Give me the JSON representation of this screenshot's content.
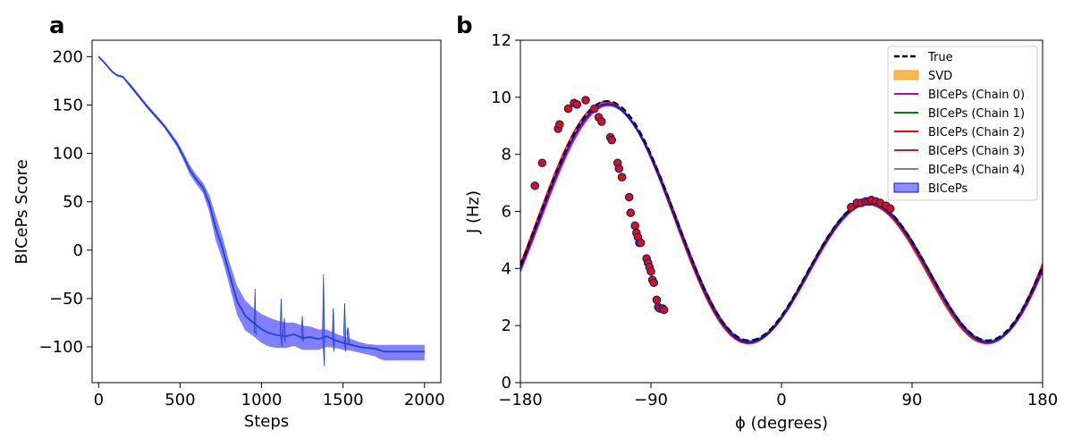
{
  "chart_data": [
    {
      "panel": "a",
      "type": "area",
      "xlabel": "Steps",
      "ylabel": "BICePs Score",
      "xlim": [
        -40,
        2100
      ],
      "ylim": [
        -137,
        217
      ],
      "xticks": [
        0,
        500,
        1000,
        1500,
        2000
      ],
      "yticks": [
        200,
        150,
        100,
        50,
        0,
        -50,
        -100
      ],
      "ytick_labels": [
        "200",
        "150",
        "100",
        "50",
        "0",
        "−50",
        "−100"
      ],
      "color": "#1f3fdc",
      "fill_color": "#6b6bff",
      "mean": {
        "x": [
          0,
          40,
          80,
          110,
          150,
          200,
          300,
          400,
          480,
          520,
          560,
          600,
          640,
          680,
          720,
          760,
          800,
          850,
          900,
          950,
          1000,
          1050,
          1100,
          1150,
          1200,
          1250,
          1300,
          1350,
          1400,
          1450,
          1500,
          1550,
          1600,
          1650,
          1700,
          1720,
          1750,
          2000
        ],
        "y": [
          200,
          193,
          185,
          181,
          179,
          169,
          148,
          129,
          110,
          97,
          83,
          73,
          65,
          48,
          22,
          2,
          -23,
          -53,
          -68,
          -75,
          -82,
          -86,
          -88,
          -89,
          -87,
          -91,
          -90,
          -92,
          -89,
          -93,
          -96,
          -98,
          -100,
          -101,
          -102,
          -103,
          -105,
          -105
        ]
      },
      "band_upper": [
        201,
        194,
        186,
        182,
        180,
        171,
        150,
        131,
        113,
        101,
        88,
        78,
        70,
        57,
        35,
        14,
        -11,
        -37,
        -52,
        -60,
        -66,
        -70,
        -73,
        -75,
        -75,
        -78,
        -79,
        -82,
        -82,
        -86,
        -89,
        -92,
        -95,
        -97,
        -98,
        -98,
        -98,
        -98
      ],
      "band_lower": [
        199,
        192,
        184,
        180,
        178,
        167,
        146,
        127,
        107,
        93,
        78,
        68,
        59,
        39,
        9,
        -10,
        -35,
        -67,
        -83,
        -89,
        -96,
        -100,
        -101,
        -101,
        -99,
        -103,
        -103,
        -103,
        -100,
        -101,
        -103,
        -104,
        -106,
        -108,
        -110,
        -112,
        -114,
        -114
      ],
      "spikes": [
        {
          "x": 960,
          "peak": -40,
          "low": -85
        },
        {
          "x": 1120,
          "peak": -50,
          "low": -100
        },
        {
          "x": 1140,
          "peak": -70,
          "low": -95
        },
        {
          "x": 1250,
          "peak": -68,
          "low": -95
        },
        {
          "x": 1380,
          "peak": -25,
          "low": -120
        },
        {
          "x": 1440,
          "peak": -60,
          "low": -105
        },
        {
          "x": 1510,
          "peak": -55,
          "low": -105
        },
        {
          "x": 1530,
          "peak": -80,
          "low": -98
        }
      ]
    },
    {
      "panel": "b",
      "type": "line",
      "xlabel": "ϕ (degrees)",
      "ylabel": "J (Hz)",
      "xlim": [
        -180,
        180
      ],
      "ylim": [
        0,
        12
      ],
      "xticks": [
        -180,
        -90,
        0,
        90,
        180
      ],
      "xtick_labels": [
        "−180",
        "−90",
        "0",
        "90",
        "180"
      ],
      "yticks": [
        0,
        2,
        4,
        6,
        8,
        10,
        12
      ],
      "karplus": {
        "A": 6.51,
        "B": -1.76,
        "C": 1.6,
        "offset_deg": -60
      },
      "legend_position": "top-right",
      "series": [
        {
          "name": "True",
          "color": "#000000",
          "style": "dashed",
          "A": 6.51,
          "B": -1.76,
          "C": 1.6,
          "offset_deg": -60
        },
        {
          "name": "SVD",
          "color": "#f5a623",
          "style": "band"
        },
        {
          "name": "BICePs (Chain 0)",
          "color": "#c000c0",
          "style": "solid",
          "A": 6.45,
          "B": -1.72,
          "C": 1.55,
          "offset_deg": -61
        },
        {
          "name": "BICePs (Chain 1)",
          "color": "#008000",
          "style": "solid",
          "A": 6.5,
          "B": -1.7,
          "C": 1.56,
          "offset_deg": -60
        },
        {
          "name": "BICePs (Chain 2)",
          "color": "#ff0000",
          "style": "solid",
          "A": 6.55,
          "B": -1.8,
          "C": 1.5,
          "offset_deg": -59
        },
        {
          "name": "BICePs (Chain 3)",
          "color": "#b22222",
          "style": "solid",
          "A": 6.48,
          "B": -1.75,
          "C": 1.52,
          "offset_deg": -60
        },
        {
          "name": "BICePs (Chain 4)",
          "color": "#808080",
          "style": "solid",
          "A": 6.5,
          "B": -1.74,
          "C": 1.55,
          "offset_deg": -60
        },
        {
          "name": "BICePs",
          "color": "#1010e0",
          "style": "band",
          "A": 6.5,
          "B": -1.74,
          "C": 1.53,
          "offset_deg": -60
        }
      ],
      "points": {
        "phi": [
          -170,
          -165,
          -154,
          -153,
          -147,
          -143,
          -141,
          -135,
          -129,
          -126,
          -124,
          -118,
          -117,
          -113,
          -112,
          -110,
          -105,
          -104,
          -101,
          -100,
          -99,
          -98,
          -97,
          -93,
          -92,
          -91,
          -90,
          -89,
          -88,
          -86,
          -85,
          -84,
          -82,
          -81,
          48,
          52,
          55,
          58,
          60,
          62,
          65,
          68,
          72,
          75
        ],
        "J": [
          6.9,
          7.7,
          8.9,
          9.05,
          9.6,
          9.8,
          9.75,
          9.9,
          9.6,
          9.3,
          9.15,
          8.6,
          8.5,
          7.7,
          7.5,
          7.2,
          6.5,
          5.95,
          5.5,
          5.25,
          5.1,
          4.9,
          4.9,
          4.35,
          4.2,
          4.05,
          3.9,
          3.6,
          3.5,
          2.9,
          2.65,
          2.6,
          2.6,
          2.55,
          6.15,
          6.3,
          6.3,
          6.35,
          6.35,
          6.4,
          6.35,
          6.3,
          6.2,
          6.1
        ]
      }
    }
  ]
}
